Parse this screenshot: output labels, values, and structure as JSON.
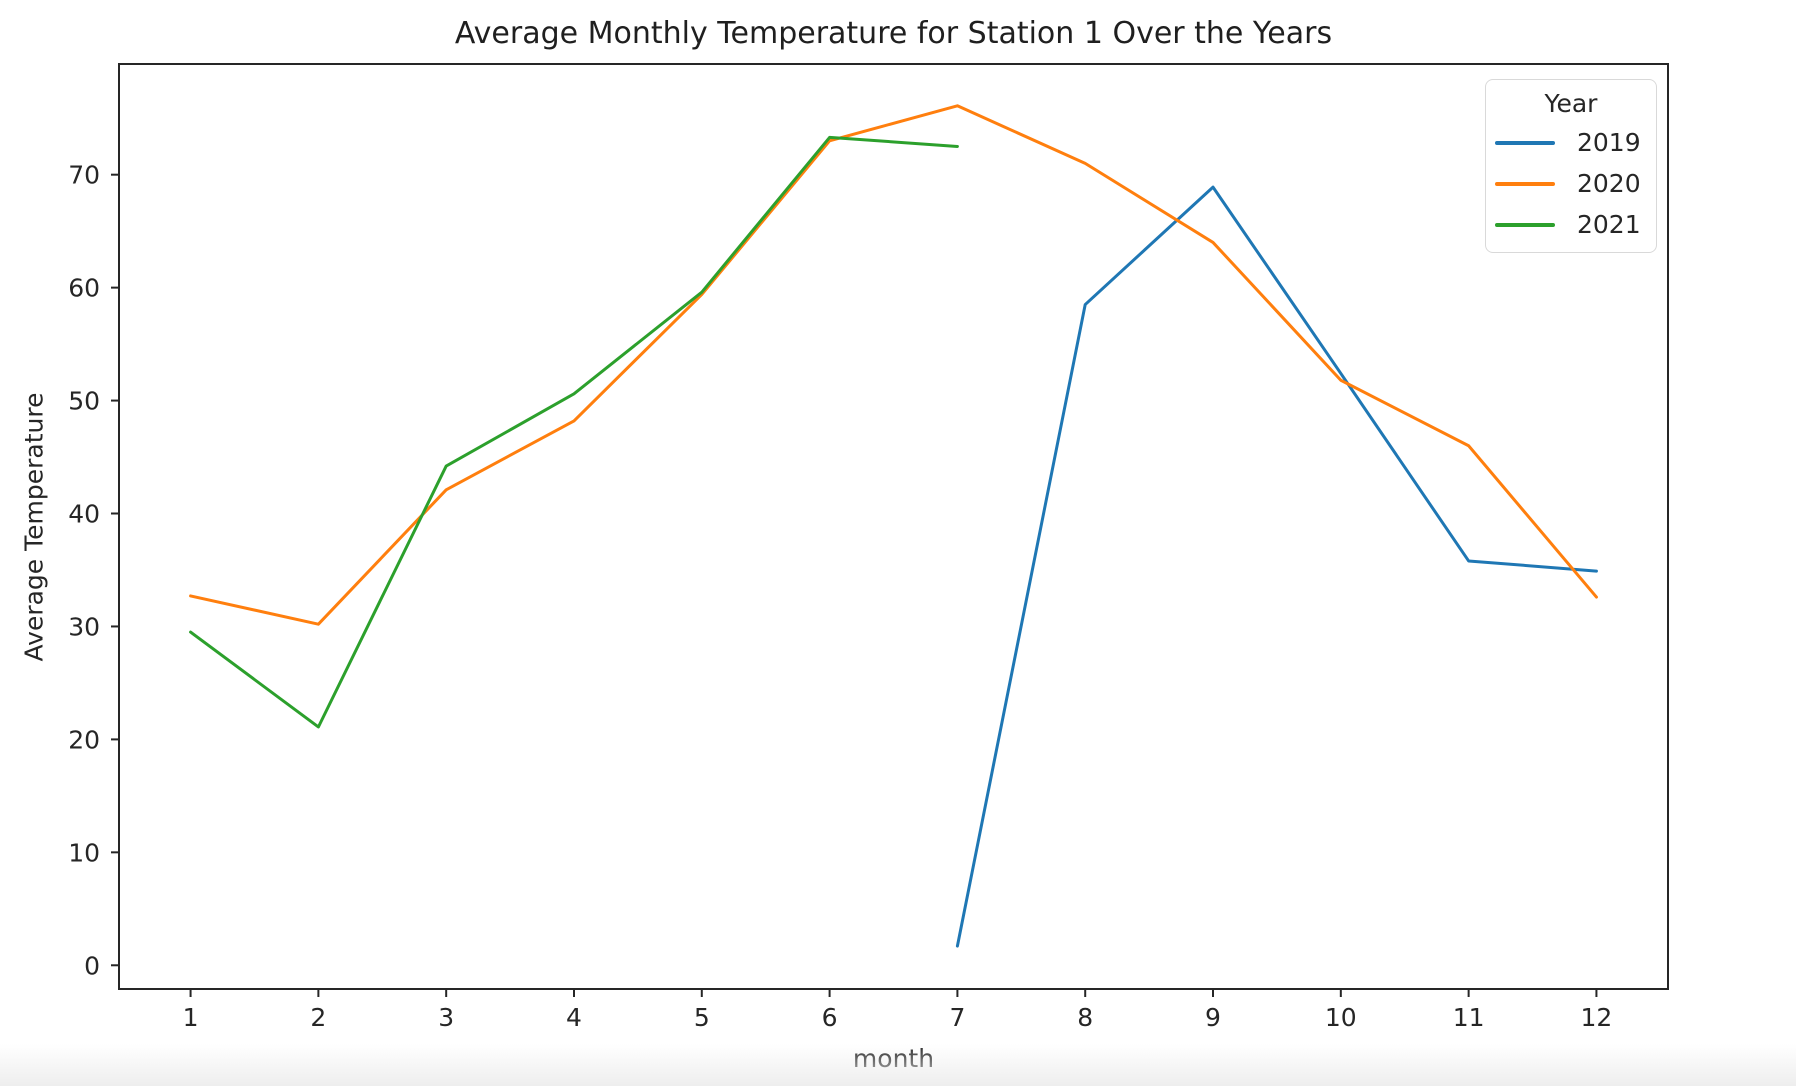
{
  "figure": {
    "background": "#ffffff",
    "text_color": "#262626",
    "axis_color": "#262626"
  },
  "chart_data": {
    "type": "line",
    "title": "Average Monthly Temperature for Station 1 Over the Years",
    "xlabel": "month",
    "ylabel": "Average Temperature",
    "x_ticks": [
      1,
      2,
      3,
      4,
      5,
      6,
      7,
      8,
      9,
      10,
      11,
      12
    ],
    "y_ticks": [
      0,
      10,
      20,
      30,
      40,
      50,
      60,
      70
    ],
    "xlim": [
      0.44,
      12.56
    ],
    "ylim": [
      -2.1,
      79.8
    ],
    "grid": false,
    "line_width": 3,
    "legend": {
      "title": "Year",
      "position": "upper-right"
    },
    "series": [
      {
        "name": "2019",
        "color": "#1f77b4",
        "x": [
          7,
          8,
          9,
          10,
          11,
          12
        ],
        "y": [
          1.7,
          58.5,
          68.9,
          52.4,
          35.8,
          34.9
        ]
      },
      {
        "name": "2020",
        "color": "#ff7f0e",
        "x": [
          1,
          2,
          3,
          4,
          5,
          6,
          7,
          8,
          9,
          10,
          11,
          12
        ],
        "y": [
          32.7,
          30.2,
          42.1,
          48.2,
          59.4,
          73.0,
          76.1,
          71.0,
          64.0,
          51.8,
          46.0,
          32.6
        ]
      },
      {
        "name": "2021",
        "color": "#2ca02c",
        "x": [
          1,
          2,
          3,
          4,
          5,
          6,
          7
        ],
        "y": [
          29.5,
          21.1,
          44.2,
          50.6,
          59.6,
          73.3,
          72.5
        ]
      }
    ]
  }
}
